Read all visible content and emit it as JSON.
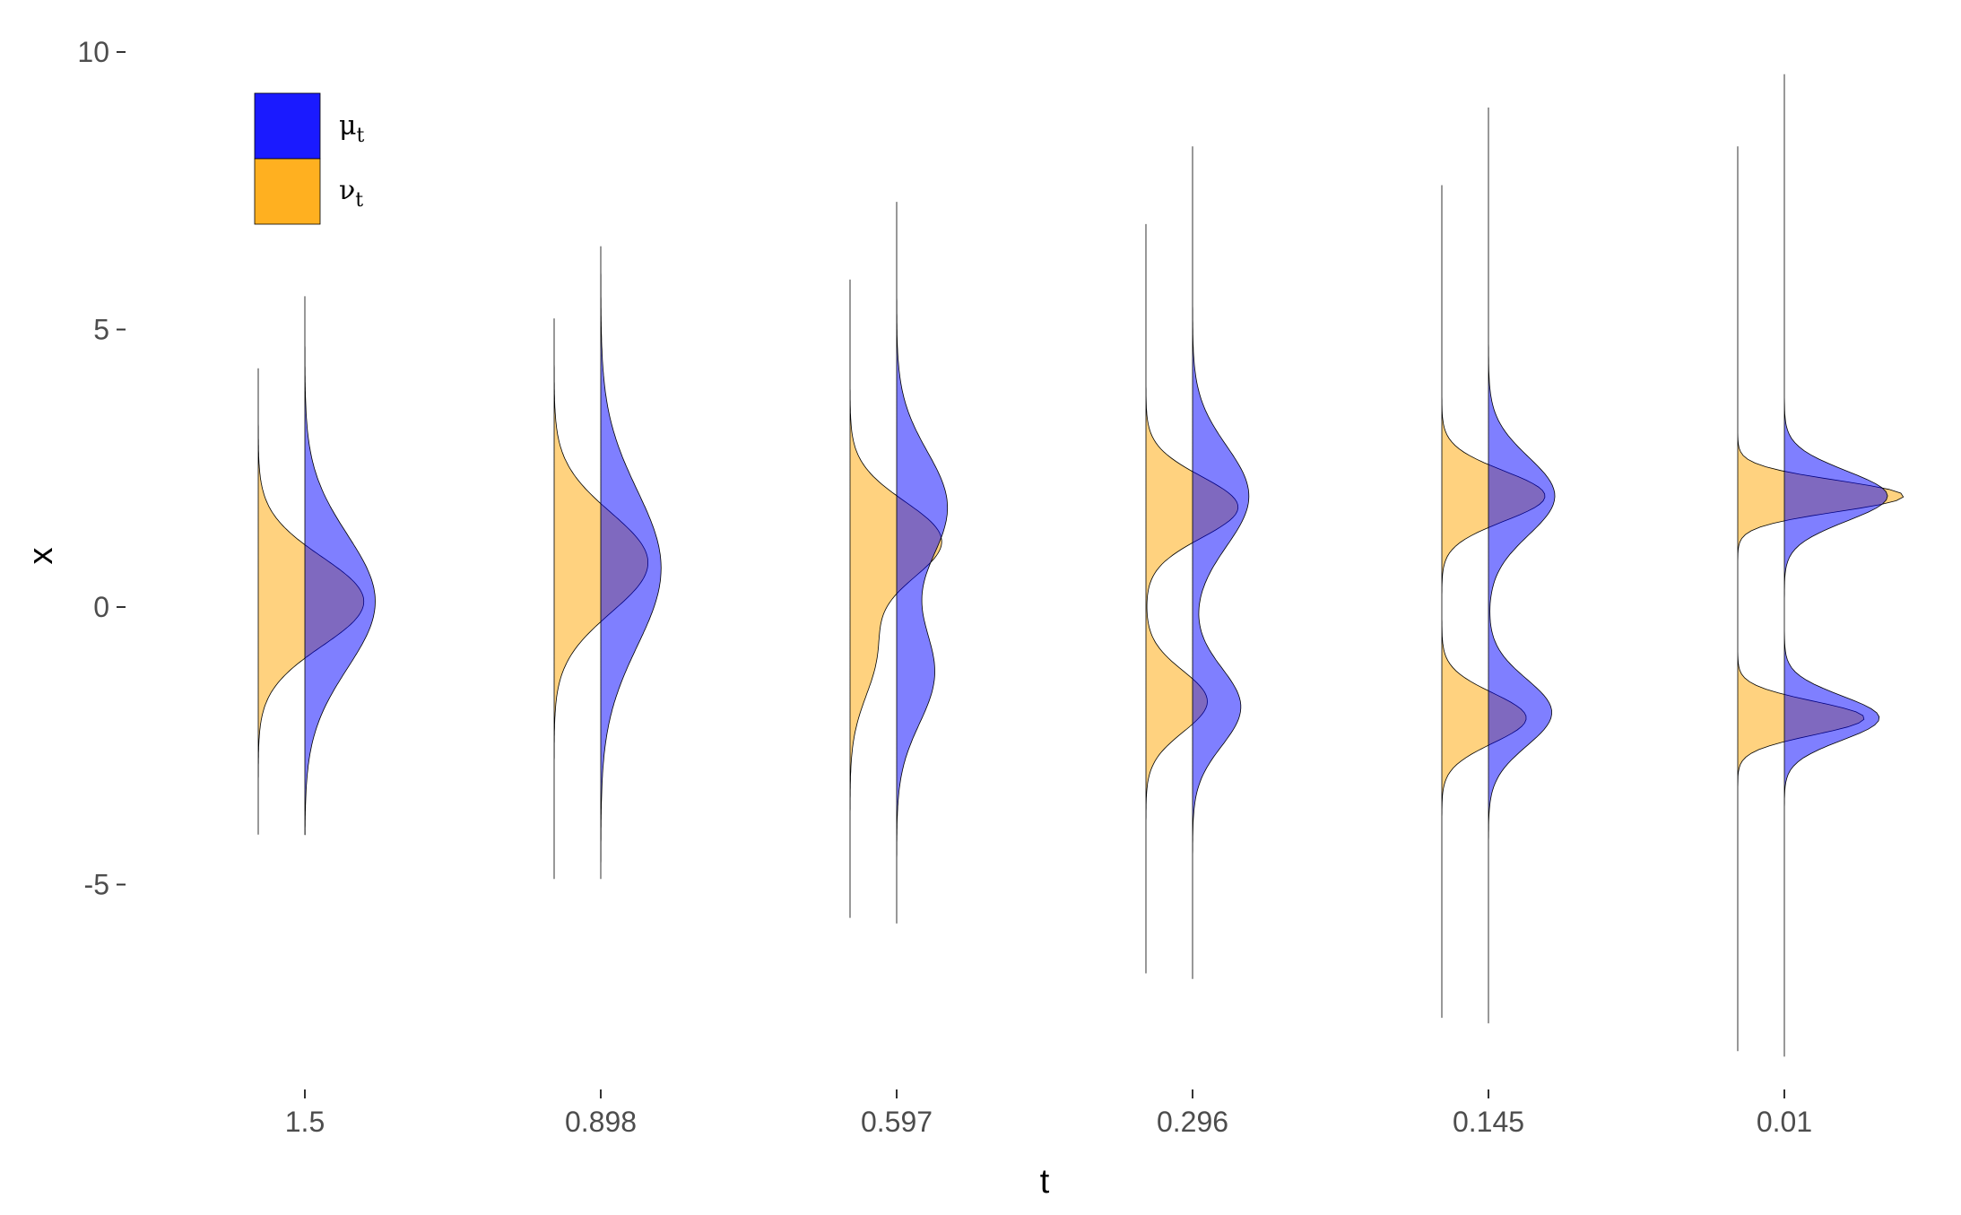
{
  "chart_data": {
    "type": "area",
    "variant": "half-violin (ridgeline) densities per t",
    "xlabel": "t",
    "ylabel": "x",
    "categories": [
      "1.5",
      "0.898",
      "0.597",
      "0.296",
      "0.145",
      "0.01"
    ],
    "y_ticks": [
      "10",
      "5",
      "0",
      "-5"
    ],
    "y_tick_values": [
      10,
      5,
      0,
      -5
    ],
    "ylim": [
      -9,
      10.5
    ],
    "grid": false,
    "legend": {
      "position": "top-left",
      "items": [
        {
          "key": "mu",
          "symbol": "μ",
          "sub": "t",
          "color": "#1a1aff"
        },
        {
          "key": "nu",
          "symbol": "ν",
          "sub": "t",
          "color": "#ffb020"
        }
      ]
    },
    "density_alpha": 0.5,
    "overlap_color": "#bf9582",
    "series": [
      {
        "name": "μt",
        "side": "right",
        "color": "#0000ff",
        "groups": [
          {
            "category": "1.5",
            "range": [
              -4.1,
              5.6
            ],
            "mixture": [
              {
                "w": 1.0,
                "m": 0.1,
                "s": 1.2
              }
            ]
          },
          {
            "category": "0.898",
            "range": [
              -4.9,
              6.5
            ],
            "mixture": [
              {
                "w": 1.0,
                "m": 0.7,
                "s": 1.4
              }
            ]
          },
          {
            "category": "0.597",
            "range": [
              -5.7,
              7.3
            ],
            "mixture": [
              {
                "w": 0.6,
                "m": 1.8,
                "s": 1.0
              },
              {
                "w": 0.4,
                "m": -1.2,
                "s": 0.9
              }
            ]
          },
          {
            "category": "0.296",
            "range": [
              -6.7,
              8.3
            ],
            "mixture": [
              {
                "w": 0.6,
                "m": 2.0,
                "s": 0.9
              },
              {
                "w": 0.4,
                "m": -1.8,
                "s": 0.7
              }
            ]
          },
          {
            "category": "0.145",
            "range": [
              -7.5,
              9.0
            ],
            "mixture": [
              {
                "w": 0.55,
                "m": 2.0,
                "s": 0.7
              },
              {
                "w": 0.45,
                "m": -1.9,
                "s": 0.6
              }
            ]
          },
          {
            "category": "0.01",
            "range": [
              -8.1,
              9.6
            ],
            "mixture": [
              {
                "w": 0.55,
                "m": 2.0,
                "s": 0.45
              },
              {
                "w": 0.45,
                "m": -2.0,
                "s": 0.4
              }
            ]
          }
        ]
      },
      {
        "name": "νt",
        "side": "left",
        "color": "#ffa500",
        "groups": [
          {
            "category": "1.5",
            "range": [
              -4.1,
              4.3
            ],
            "mixture": [
              {
                "w": 1.0,
                "m": 0.1,
                "s": 0.8
              }
            ]
          },
          {
            "category": "0.898",
            "range": [
              -4.9,
              5.2
            ],
            "mixture": [
              {
                "w": 1.0,
                "m": 0.8,
                "s": 0.9
              }
            ]
          },
          {
            "category": "0.597",
            "range": [
              -5.6,
              5.9
            ],
            "mixture": [
              {
                "w": 0.75,
                "m": 1.2,
                "s": 0.7
              },
              {
                "w": 0.25,
                "m": -0.8,
                "s": 0.8
              }
            ]
          },
          {
            "category": "0.296",
            "range": [
              -6.6,
              6.9
            ],
            "mixture": [
              {
                "w": 0.6,
                "m": 1.8,
                "s": 0.55
              },
              {
                "w": 0.4,
                "m": -1.7,
                "s": 0.55
              }
            ]
          },
          {
            "category": "0.145",
            "range": [
              -7.4,
              7.6
            ],
            "mixture": [
              {
                "w": 0.55,
                "m": 2.0,
                "s": 0.45
              },
              {
                "w": 0.45,
                "m": -2.0,
                "s": 0.45
              }
            ]
          },
          {
            "category": "0.01",
            "range": [
              -8.0,
              8.3
            ],
            "mixture": [
              {
                "w": 0.55,
                "m": 2.0,
                "s": 0.28
              },
              {
                "w": 0.45,
                "m": -2.0,
                "s": 0.3
              }
            ]
          }
        ]
      }
    ]
  }
}
